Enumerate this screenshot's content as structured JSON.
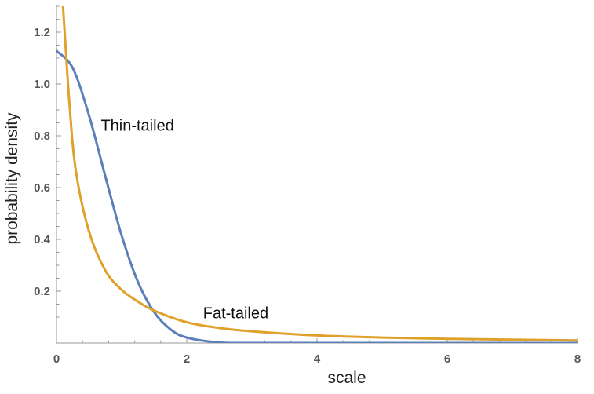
{
  "chart_data": {
    "type": "line",
    "title": "",
    "xlabel": "scale",
    "ylabel": "probability density",
    "xlim": [
      0,
      8
    ],
    "ylim": [
      0,
      1.3
    ],
    "x_ticks": [
      "0",
      "2",
      "4",
      "6",
      "8"
    ],
    "y_ticks": [
      "0.2",
      "0.4",
      "0.6",
      "0.8",
      "1.0",
      "1.2"
    ],
    "grid": false,
    "series": [
      {
        "name": "Thin-tailed",
        "color": "#5b7fb8",
        "x": [
          0,
          0.25,
          0.5,
          0.75,
          1.0,
          1.25,
          1.5,
          1.75,
          2.0,
          2.5,
          3.0,
          4.0,
          5.0,
          6.0,
          7.0,
          8.0
        ],
        "y": [
          1.128,
          1.061,
          0.878,
          0.643,
          0.415,
          0.236,
          0.119,
          0.053,
          0.021,
          0.002,
          0.0,
          0.0,
          0.0,
          0.0,
          0.0,
          0.0
        ]
      },
      {
        "name": "Fat-tailed",
        "color": "#e0a12b",
        "x": [
          0.1,
          0.2,
          0.3,
          0.5,
          0.75,
          1.0,
          1.25,
          1.5,
          2.0,
          2.5,
          3.0,
          4.0,
          5.0,
          6.0,
          7.0,
          8.0
        ],
        "y": [
          1.3,
          0.92,
          0.66,
          0.43,
          0.28,
          0.205,
          0.16,
          0.125,
          0.08,
          0.058,
          0.045,
          0.029,
          0.021,
          0.016,
          0.013,
          0.01
        ]
      }
    ],
    "annotations": [
      {
        "text": "Thin-tailed",
        "x": 0.68,
        "y": 0.82
      },
      {
        "text": "Fat-tailed",
        "x": 2.25,
        "y": 0.095
      }
    ]
  }
}
